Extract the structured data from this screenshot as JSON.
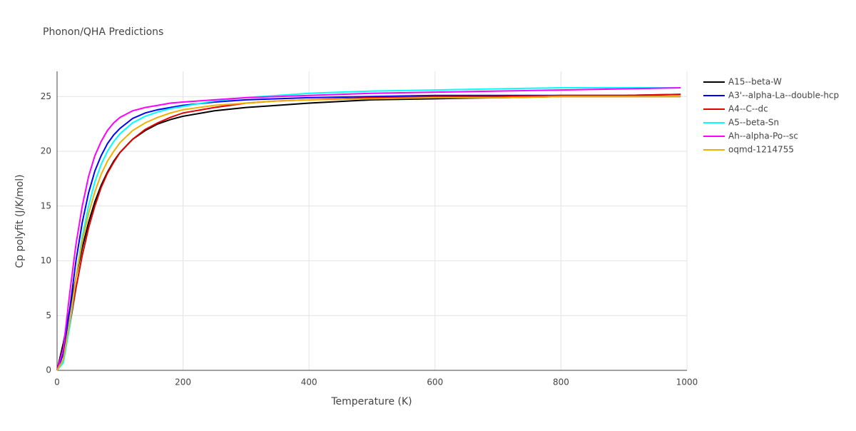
{
  "chart_data": {
    "type": "line",
    "title": "Phonon/QHA Predictions",
    "x_label": "Temperature (K)",
    "y_label": "Cp polyfit (J/K/mol)",
    "x": [
      0,
      10,
      20,
      30,
      40,
      50,
      60,
      70,
      80,
      90,
      100,
      120,
      140,
      160,
      180,
      200,
      250,
      300,
      350,
      400,
      500,
      600,
      700,
      800,
      900,
      990
    ],
    "xlim": [
      0,
      1000
    ],
    "xticks": [
      0,
      200,
      400,
      600,
      800,
      1000
    ],
    "ylim": [
      0,
      27.3
    ],
    "yticks": [
      0,
      5,
      10,
      15,
      20,
      25
    ],
    "grid": true,
    "legend": "right",
    "series": [
      {
        "name": "A15--beta-W",
        "color": "#000000",
        "values": [
          0,
          2.5,
          5.5,
          8.5,
          11.2,
          13.5,
          15.4,
          16.9,
          18.1,
          19.1,
          19.9,
          21.1,
          21.9,
          22.5,
          22.9,
          23.2,
          23.7,
          24.0,
          24.2,
          24.4,
          24.7,
          24.8,
          24.9,
          25.0,
          25.0,
          25.0
        ]
      },
      {
        "name": "A3'--alpha-La--double-hcp",
        "color": "#0000ff",
        "values": [
          0,
          1.5,
          5.5,
          10,
          13.5,
          16.2,
          18.2,
          19.6,
          20.7,
          21.5,
          22.1,
          23.0,
          23.5,
          23.8,
          24.0,
          24.2,
          24.5,
          24.7,
          24.8,
          24.9,
          25.0,
          25.1,
          25.1,
          25.1,
          25.1,
          25.2
        ]
      },
      {
        "name": "A4--C--dc",
        "color": "#e00000",
        "values": [
          0,
          1,
          4,
          7.5,
          10.5,
          13,
          15,
          16.7,
          18,
          19,
          19.9,
          21.1,
          22,
          22.6,
          23.1,
          23.5,
          24.0,
          24.4,
          24.6,
          24.7,
          24.9,
          25.0,
          25.0,
          25.1,
          25.1,
          25.2
        ]
      },
      {
        "name": "A5--beta-Sn",
        "color": "#00ffff",
        "values": [
          0,
          0.7,
          4,
          8.5,
          12.2,
          15,
          17.2,
          18.8,
          20,
          20.9,
          21.6,
          22.6,
          23.2,
          23.6,
          23.9,
          24.1,
          24.6,
          24.9,
          25.1,
          25.3,
          25.5,
          25.6,
          25.7,
          25.8,
          25.8,
          25.8
        ]
      },
      {
        "name": "Ah--alpha-Po--sc",
        "color": "#ff00ff",
        "values": [
          0,
          2,
          7,
          11.5,
          15,
          17.7,
          19.6,
          20.9,
          21.9,
          22.6,
          23.1,
          23.7,
          24.0,
          24.2,
          24.4,
          24.5,
          24.7,
          24.9,
          25.0,
          25.1,
          25.3,
          25.4,
          25.5,
          25.6,
          25.7,
          25.8
        ]
      },
      {
        "name": "oqmd-1214755",
        "color": "#f0b000",
        "values": [
          0,
          1,
          4.5,
          8.5,
          11.8,
          14.3,
          16.3,
          17.9,
          19.1,
          20,
          20.8,
          21.9,
          22.6,
          23.1,
          23.5,
          23.8,
          24.2,
          24.4,
          24.6,
          24.7,
          24.8,
          24.9,
          24.9,
          25.0,
          25.0,
          25.0
        ]
      }
    ]
  }
}
